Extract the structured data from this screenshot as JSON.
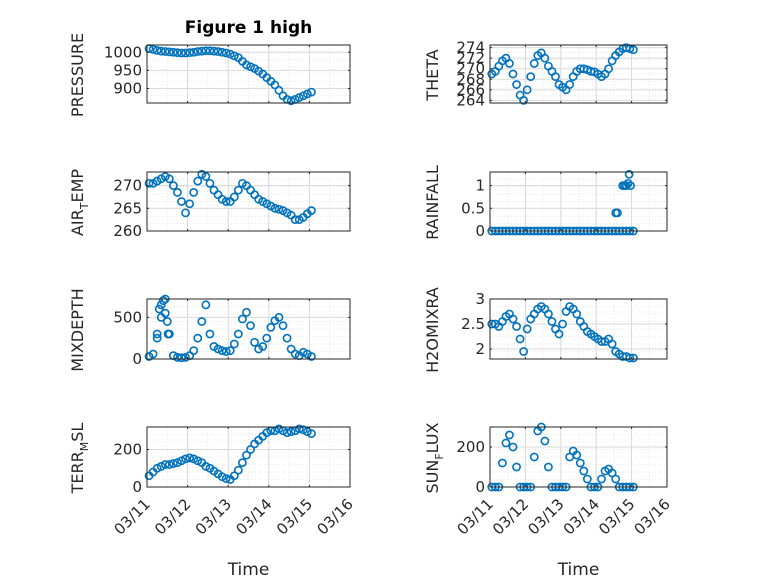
{
  "figure": {
    "title": "Figure 1 high",
    "xlabel": "Time"
  },
  "colors": {
    "marker": "#0072BD",
    "axis": "#262626",
    "grid": "#d9d9d9"
  },
  "chart_data": [
    {
      "type": "scatter",
      "ylabel": "PRESSURE",
      "title": "Figure 1 high",
      "xlim": [
        0,
        5
      ],
      "ylim": [
        860,
        1020
      ],
      "yticks": [
        900,
        950,
        1000
      ],
      "ytick_labels": [
        "900",
        "950",
        "1000"
      ],
      "xticks": [],
      "xtick_labels": [],
      "x": [
        0.05,
        0.15,
        0.25,
        0.35,
        0.45,
        0.55,
        0.65,
        0.75,
        0.85,
        0.95,
        1.05,
        1.15,
        1.25,
        1.35,
        1.45,
        1.55,
        1.65,
        1.75,
        1.85,
        1.95,
        2.05,
        2.15,
        2.25,
        2.35,
        2.45,
        2.55,
        2.65,
        2.75,
        2.85,
        2.95,
        3.05,
        3.15,
        3.25,
        3.35,
        3.45,
        3.55,
        3.65,
        3.75,
        3.85,
        3.95,
        4.05
      ],
      "y": [
        1010,
        1008,
        1005,
        1003,
        1002,
        1001,
        1000,
        999,
        998,
        998,
        999,
        1000,
        1002,
        1003,
        1004,
        1004,
        1003,
        1002,
        1000,
        998,
        995,
        990,
        985,
        975,
        965,
        960,
        955,
        948,
        940,
        930,
        920,
        910,
        895,
        880,
        870,
        866,
        870,
        875,
        880,
        885,
        890
      ]
    },
    {
      "type": "scatter",
      "ylabel": "THETA",
      "xlim": [
        0,
        5
      ],
      "ylim": [
        263.5,
        274.5
      ],
      "yticks": [
        264,
        266,
        268,
        270,
        272,
        274
      ],
      "ytick_labels": [
        "264",
        "266",
        "268",
        "270",
        "272",
        "274"
      ],
      "xticks": [],
      "xtick_labels": [],
      "x": [
        0.05,
        0.15,
        0.25,
        0.35,
        0.45,
        0.55,
        0.65,
        0.75,
        0.85,
        0.95,
        1.05,
        1.15,
        1.25,
        1.35,
        1.45,
        1.55,
        1.65,
        1.75,
        1.85,
        1.95,
        2.05,
        2.15,
        2.25,
        2.35,
        2.45,
        2.55,
        2.65,
        2.75,
        2.85,
        2.95,
        3.05,
        3.15,
        3.25,
        3.35,
        3.45,
        3.55,
        3.65,
        3.75,
        3.85,
        3.95,
        4.05
      ],
      "y": [
        269,
        269.5,
        270.5,
        271.5,
        272,
        271,
        269,
        267,
        265,
        264,
        266,
        268.5,
        271,
        272.5,
        273,
        272,
        270.5,
        269.5,
        268.5,
        267,
        266.5,
        266,
        267,
        268.5,
        269.5,
        270,
        270,
        269.8,
        269.5,
        269.4,
        269,
        268.5,
        269,
        270,
        271.5,
        272.5,
        273.2,
        273.8,
        274,
        273.8,
        273.6
      ]
    },
    {
      "type": "scatter",
      "ylabel": "AIR_TEMP",
      "xlim": [
        0,
        5
      ],
      "ylim": [
        260,
        273
      ],
      "yticks": [
        260,
        265,
        270
      ],
      "ytick_labels": [
        "260",
        "265",
        "270"
      ],
      "xticks": [],
      "xtick_labels": [],
      "x": [
        0.05,
        0.15,
        0.25,
        0.35,
        0.45,
        0.55,
        0.65,
        0.75,
        0.85,
        0.95,
        1.05,
        1.15,
        1.25,
        1.35,
        1.45,
        1.55,
        1.65,
        1.75,
        1.85,
        1.95,
        2.05,
        2.15,
        2.25,
        2.35,
        2.45,
        2.55,
        2.65,
        2.75,
        2.85,
        2.95,
        3.05,
        3.15,
        3.25,
        3.35,
        3.45,
        3.55,
        3.65,
        3.75,
        3.85,
        3.95,
        4.05
      ],
      "y": [
        270.5,
        270.5,
        271,
        271.5,
        272,
        271.5,
        270,
        268.5,
        266.5,
        264,
        266,
        268.5,
        271,
        272.5,
        272,
        270.5,
        269,
        268,
        267,
        266.5,
        266.5,
        267.5,
        269,
        270.5,
        270,
        269,
        268,
        267,
        266.5,
        266,
        265.5,
        265,
        264.8,
        264.5,
        264,
        263.5,
        262.5,
        262.5,
        263,
        263.8,
        264.5
      ]
    },
    {
      "type": "scatter",
      "ylabel": "RAINFALL",
      "xlim": [
        0,
        5
      ],
      "ylim": [
        0,
        1.3
      ],
      "yticks": [
        0,
        0.5,
        1
      ],
      "ytick_labels": [
        "0",
        "0.5",
        "1"
      ],
      "xticks": [],
      "xtick_labels": [],
      "x": [
        0.05,
        0.15,
        0.25,
        0.35,
        0.45,
        0.55,
        0.65,
        0.75,
        0.85,
        0.95,
        1.05,
        1.15,
        1.25,
        1.35,
        1.45,
        1.55,
        1.65,
        1.75,
        1.85,
        1.95,
        2.05,
        2.15,
        2.25,
        2.35,
        2.45,
        2.55,
        2.65,
        2.75,
        2.85,
        2.95,
        3.05,
        3.15,
        3.25,
        3.35,
        3.45,
        3.55,
        3.65,
        3.75,
        3.85,
        3.95,
        4.05,
        3.55,
        3.6,
        3.75,
        3.8,
        3.85,
        3.9,
        3.93,
        3.97
      ],
      "y": [
        0,
        0,
        0,
        0,
        0,
        0,
        0,
        0,
        0,
        0,
        0,
        0,
        0,
        0,
        0,
        0,
        0,
        0,
        0,
        0,
        0,
        0,
        0,
        0,
        0,
        0,
        0,
        0,
        0,
        0,
        0,
        0,
        0,
        0,
        0,
        0,
        0,
        0,
        0,
        0,
        0,
        0.4,
        0.4,
        1,
        1,
        1,
        1.05,
        1.25,
        1.0
      ]
    },
    {
      "type": "scatter",
      "ylabel": "MIXDEPTH",
      "xlim": [
        0,
        5
      ],
      "ylim": [
        0,
        720
      ],
      "yticks": [
        0,
        500
      ],
      "ytick_labels": [
        "0",
        "500"
      ],
      "xticks": [],
      "xtick_labels": [],
      "x": [
        0.05,
        0.15,
        0.25,
        0.35,
        0.45,
        0.55,
        0.65,
        0.75,
        0.85,
        0.95,
        1.05,
        1.15,
        1.25,
        1.35,
        1.45,
        1.55,
        1.65,
        1.75,
        1.85,
        1.95,
        2.05,
        2.15,
        2.25,
        2.35,
        2.45,
        2.55,
        2.65,
        2.75,
        2.85,
        2.95,
        3.05,
        3.15,
        3.25,
        3.35,
        3.45,
        3.55,
        3.65,
        3.75,
        3.85,
        3.95,
        4.05,
        0.25,
        0.3,
        0.35,
        0.4,
        0.45,
        0.5,
        0.52
      ],
      "y": [
        30,
        60,
        300,
        500,
        550,
        300,
        40,
        20,
        15,
        20,
        40,
        100,
        250,
        450,
        650,
        300,
        150,
        120,
        100,
        90,
        100,
        180,
        300,
        480,
        560,
        400,
        200,
        120,
        150,
        250,
        380,
        460,
        500,
        400,
        250,
        120,
        60,
        40,
        80,
        60,
        30,
        250,
        600,
        650,
        700,
        720,
        450,
        300
      ]
    },
    {
      "type": "scatter",
      "ylabel": "H2OMIXRA",
      "xlim": [
        0,
        5
      ],
      "ylim": [
        1.8,
        3.0
      ],
      "yticks": [
        2,
        2.5,
        3
      ],
      "ytick_labels": [
        "2",
        "2.5",
        "3"
      ],
      "xticks": [],
      "xtick_labels": [],
      "x": [
        0.05,
        0.15,
        0.25,
        0.35,
        0.45,
        0.55,
        0.65,
        0.75,
        0.85,
        0.95,
        1.05,
        1.15,
        1.25,
        1.35,
        1.45,
        1.55,
        1.65,
        1.75,
        1.85,
        1.95,
        2.05,
        2.15,
        2.25,
        2.35,
        2.45,
        2.55,
        2.65,
        2.75,
        2.85,
        2.95,
        3.05,
        3.15,
        3.25,
        3.35,
        3.45,
        3.55,
        3.65,
        3.75,
        3.85,
        3.95,
        4.05
      ],
      "y": [
        2.5,
        2.5,
        2.45,
        2.55,
        2.65,
        2.7,
        2.6,
        2.45,
        2.2,
        1.95,
        2.4,
        2.6,
        2.7,
        2.8,
        2.85,
        2.8,
        2.7,
        2.55,
        2.4,
        2.3,
        2.5,
        2.75,
        2.85,
        2.8,
        2.7,
        2.55,
        2.45,
        2.35,
        2.3,
        2.25,
        2.2,
        2.15,
        2.15,
        2.2,
        2.1,
        1.95,
        1.9,
        1.85,
        1.85,
        1.82,
        1.82
      ]
    },
    {
      "type": "scatter",
      "ylabel": "TERR_MSL",
      "xlim": [
        0,
        5
      ],
      "ylim": [
        0,
        320
      ],
      "yticks": [
        0,
        200
      ],
      "ytick_labels": [
        "0",
        "200"
      ],
      "xticks": [
        0,
        1,
        2,
        3,
        4,
        5
      ],
      "xtick_labels": [
        "03/11",
        "03/12",
        "03/13",
        "03/14",
        "03/15",
        "03/16"
      ],
      "x": [
        0.05,
        0.15,
        0.25,
        0.35,
        0.45,
        0.55,
        0.65,
        0.75,
        0.85,
        0.95,
        1.05,
        1.15,
        1.25,
        1.35,
        1.45,
        1.55,
        1.65,
        1.75,
        1.85,
        1.95,
        2.05,
        2.15,
        2.25,
        2.35,
        2.45,
        2.55,
        2.65,
        2.75,
        2.85,
        2.95,
        3.05,
        3.15,
        3.25,
        3.35,
        3.45,
        3.55,
        3.65,
        3.75,
        3.85,
        3.95,
        4.05
      ],
      "y": [
        60,
        80,
        100,
        110,
        120,
        120,
        125,
        130,
        140,
        150,
        155,
        150,
        140,
        130,
        110,
        100,
        85,
        70,
        55,
        45,
        40,
        60,
        90,
        130,
        170,
        200,
        230,
        250,
        270,
        290,
        300,
        300,
        310,
        300,
        290,
        295,
        300,
        310,
        305,
        295,
        285
      ]
    },
    {
      "type": "scatter",
      "ylabel": "SUN_FLUX",
      "xlim": [
        0,
        5
      ],
      "ylim": [
        0,
        300
      ],
      "yticks": [
        0,
        200
      ],
      "ytick_labels": [
        "0",
        "200"
      ],
      "xticks": [
        0,
        1,
        2,
        3,
        4,
        5
      ],
      "xtick_labels": [
        "03/11",
        "03/12",
        "03/13",
        "03/14",
        "03/15",
        "03/16"
      ],
      "x": [
        0.05,
        0.15,
        0.25,
        0.35,
        0.45,
        0.55,
        0.65,
        0.75,
        0.85,
        0.95,
        1.05,
        1.15,
        1.25,
        1.35,
        1.45,
        1.55,
        1.65,
        1.75,
        1.85,
        1.95,
        2.05,
        2.15,
        2.25,
        2.35,
        2.45,
        2.55,
        2.65,
        2.75,
        2.85,
        2.95,
        3.05,
        3.15,
        3.25,
        3.35,
        3.45,
        3.55,
        3.65,
        3.75,
        3.85,
        3.95,
        4.05
      ],
      "y": [
        0,
        0,
        0,
        120,
        220,
        260,
        200,
        100,
        0,
        0,
        0,
        0,
        150,
        280,
        300,
        230,
        100,
        0,
        0,
        0,
        0,
        0,
        150,
        180,
        160,
        120,
        80,
        40,
        0,
        0,
        0,
        40,
        80,
        90,
        70,
        40,
        0,
        0,
        0,
        0,
        0
      ]
    }
  ]
}
